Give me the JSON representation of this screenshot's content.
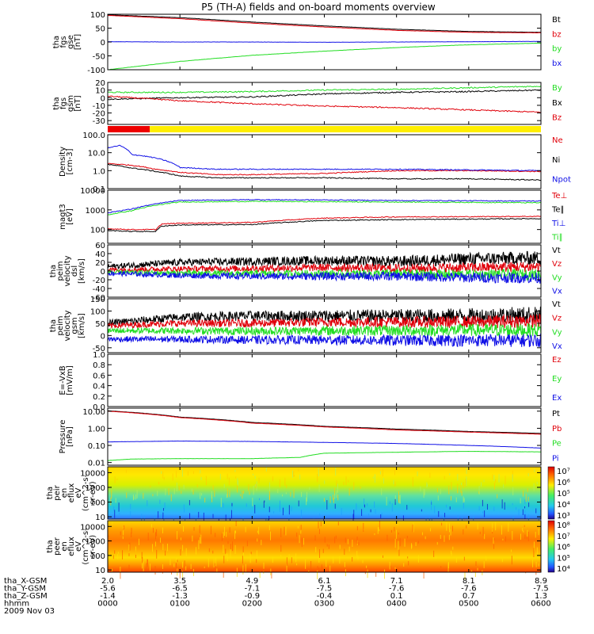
{
  "title": "P5 (TH-A) fields and on-board moments overview",
  "colors": {
    "black": "#000000",
    "red": "#e0000a",
    "green": "#22dd22",
    "blue": "#1010e6",
    "yellow": "#ffee00",
    "bar_red": "#ee0000"
  },
  "chart_data": [
    {
      "type": "line",
      "id": "fgs_gse",
      "ylabel": [
        "tha",
        "fgs",
        "gse",
        "[nT]"
      ],
      "ylim": [
        -100,
        100
      ],
      "yticks": [
        "100",
        "50",
        "0",
        "-50",
        "-100"
      ],
      "ytick_values": [
        100,
        50,
        0,
        -50,
        -100
      ],
      "series": [
        {
          "name": "Bt",
          "color": "#000000",
          "x": [
            0,
            60,
            120,
            180,
            240,
            300,
            360
          ],
          "y": [
            98,
            88,
            72,
            58,
            46,
            38,
            35
          ]
        },
        {
          "name": "bz",
          "color": "#e0000a",
          "x": [
            0,
            60,
            120,
            180,
            240,
            300,
            360
          ],
          "y": [
            96,
            84,
            68,
            54,
            42,
            35,
            33
          ]
        },
        {
          "name": "by",
          "color": "#22dd22",
          "x": [
            0,
            60,
            120,
            180,
            240,
            300,
            360
          ],
          "y": [
            -100,
            -70,
            -48,
            -33,
            -20,
            -10,
            -4
          ]
        },
        {
          "name": "bx",
          "color": "#1010e6",
          "x": [
            0,
            60,
            120,
            180,
            240,
            300,
            360
          ],
          "y": [
            1,
            0,
            0,
            -1,
            0,
            1,
            2
          ]
        }
      ]
    },
    {
      "type": "line",
      "id": "fgs_gsm",
      "ylabel": [
        "tha",
        "fgs",
        "gsm",
        "[nT]"
      ],
      "ylim": [
        -35,
        20
      ],
      "yticks": [
        "20",
        "10",
        "0",
        "-10",
        "-20",
        "-30"
      ],
      "ytick_values": [
        20,
        10,
        0,
        -10,
        -20,
        -30
      ],
      "series": [
        {
          "name": "By",
          "color": "#22dd22",
          "x": [
            0,
            60,
            120,
            180,
            240,
            300,
            360
          ],
          "y": [
            7,
            7,
            8,
            10,
            11,
            13,
            15
          ]
        },
        {
          "name": "Bx",
          "color": "#000000",
          "x": [
            0,
            60,
            120,
            180,
            240,
            300,
            360
          ],
          "y": [
            -2,
            0,
            1,
            5,
            7,
            8,
            10
          ]
        },
        {
          "name": "Bz",
          "color": "#e0000a",
          "x": [
            0,
            60,
            120,
            180,
            240,
            300,
            360
          ],
          "y": [
            2,
            -4,
            -8,
            -11,
            -13,
            -16,
            -19
          ]
        }
      ]
    },
    {
      "type": "bar-strip",
      "id": "mode_bar",
      "segments": [
        {
          "x0": 0,
          "x1": 35,
          "color": "#ee0000"
        },
        {
          "x0": 35,
          "x1": 360,
          "color": "#ffee00"
        }
      ]
    },
    {
      "type": "line",
      "id": "density",
      "scale": "log",
      "ylabel": [
        "Density",
        "[cm-3]"
      ],
      "ylim": [
        0.1,
        100
      ],
      "yticks": [
        "100.0",
        "10.0",
        "1.0",
        "0.1"
      ],
      "ytick_values": [
        100,
        10,
        1,
        0.1
      ],
      "series": [
        {
          "name": "Ne",
          "color": "#e0000a",
          "x": [
            0,
            20,
            40,
            60,
            90,
            120,
            180,
            240,
            300,
            360
          ],
          "y": [
            2.5,
            2.0,
            1.2,
            0.8,
            0.6,
            0.6,
            0.7,
            1.0,
            1.0,
            0.9
          ]
        },
        {
          "name": "Ni",
          "color": "#000000",
          "x": [
            0,
            20,
            40,
            60,
            90,
            120,
            180,
            240,
            300,
            360
          ],
          "y": [
            2.2,
            1.4,
            0.9,
            0.5,
            0.4,
            0.4,
            0.4,
            0.35,
            0.35,
            0.3
          ]
        },
        {
          "name": "Npot",
          "color": "#1010e6",
          "x": [
            0,
            10,
            20,
            40,
            60,
            90,
            120,
            180,
            240,
            300,
            360
          ],
          "y": [
            18,
            25,
            8,
            5,
            1.5,
            1.2,
            1.2,
            1.2,
            1.2,
            1.1,
            1.0
          ]
        }
      ]
    },
    {
      "type": "line",
      "id": "mom_temp",
      "scale": "log",
      "ylabel": [
        "magt3",
        "[eV]"
      ],
      "ylim": [
        20,
        10000
      ],
      "yticks": [
        "10000",
        "1000",
        "100"
      ],
      "ytick_values": [
        10000,
        1000,
        100
      ],
      "series": [
        {
          "name": "Te⊥",
          "color": "#e0000a",
          "x": [
            0,
            20,
            40,
            45,
            60,
            120,
            180,
            240,
            300,
            360
          ],
          "y": [
            110,
            100,
            100,
            190,
            210,
            230,
            380,
            440,
            450,
            470
          ]
        },
        {
          "name": "Te∥",
          "color": "#000000",
          "x": [
            0,
            20,
            40,
            45,
            60,
            120,
            180,
            240,
            300,
            360
          ],
          "y": [
            90,
            80,
            80,
            150,
            170,
            180,
            290,
            320,
            340,
            360
          ]
        },
        {
          "name": "Ti⊥",
          "color": "#1010e6",
          "x": [
            0,
            20,
            40,
            60,
            120,
            180,
            240,
            300,
            360
          ],
          "y": [
            700,
            1100,
            2000,
            3000,
            3300,
            3200,
            3000,
            2900,
            2800
          ]
        },
        {
          "name": "Ti∥",
          "color": "#22dd22",
          "x": [
            0,
            20,
            40,
            60,
            120,
            180,
            240,
            300,
            360
          ],
          "y": [
            550,
            900,
            1700,
            2500,
            2700,
            2600,
            2500,
            2400,
            2300
          ]
        }
      ]
    },
    {
      "type": "line",
      "id": "peim_velocity_dsl",
      "ylabel": [
        "tha",
        "peim",
        "velocity",
        "dsl",
        "[km/s]"
      ],
      "ylim": [
        -60,
        60
      ],
      "yticks": [
        "60",
        "40",
        "20",
        "0",
        "-20",
        "-40",
        "-60"
      ],
      "ytick_values": [
        60,
        40,
        20,
        0,
        -20,
        -40,
        -60
      ],
      "series": [
        {
          "name": "Vt",
          "color": "#000000",
          "x": [
            0,
            60,
            120,
            180,
            240,
            300,
            360
          ],
          "y": [
            10,
            20,
            22,
            24,
            22,
            28,
            30
          ]
        },
        {
          "name": "Vz",
          "color": "#e0000a",
          "x": [
            0,
            60,
            120,
            180,
            240,
            300,
            360
          ],
          "y": [
            3,
            5,
            6,
            8,
            6,
            8,
            10
          ]
        },
        {
          "name": "Vy",
          "color": "#22dd22",
          "x": [
            0,
            60,
            120,
            180,
            240,
            300,
            360
          ],
          "y": [
            -3,
            -5,
            -6,
            -6,
            -6,
            -8,
            -8
          ]
        },
        {
          "name": "Vx",
          "color": "#1010e6",
          "x": [
            0,
            60,
            120,
            180,
            240,
            300,
            360
          ],
          "y": [
            -5,
            -10,
            -12,
            -12,
            -12,
            -15,
            -16
          ]
        }
      ]
    },
    {
      "type": "line",
      "id": "peim_velocity_gsm",
      "ylabel": [
        "tha",
        "peim",
        "velocity",
        "gsm",
        "[km/s]"
      ],
      "ylim": [
        -70,
        150
      ],
      "yticks": [
        "150",
        "100",
        "50",
        "0",
        "-50"
      ],
      "ytick_values": [
        150,
        100,
        50,
        0,
        -50
      ],
      "series": [
        {
          "name": "Vt",
          "color": "#000000",
          "x": [
            0,
            60,
            120,
            180,
            240,
            300,
            360
          ],
          "y": [
            50,
            75,
            80,
            80,
            80,
            80,
            85
          ]
        },
        {
          "name": "Vz",
          "color": "#e0000a",
          "x": [
            0,
            60,
            120,
            180,
            240,
            300,
            360
          ],
          "y": [
            40,
            50,
            50,
            55,
            55,
            55,
            60
          ]
        },
        {
          "name": "Vy",
          "color": "#22dd22",
          "x": [
            0,
            60,
            120,
            180,
            240,
            300,
            360
          ],
          "y": [
            20,
            20,
            18,
            20,
            20,
            22,
            22
          ]
        },
        {
          "name": "Vx",
          "color": "#1010e6",
          "x": [
            0,
            60,
            120,
            180,
            240,
            300,
            360
          ],
          "y": [
            -15,
            -15,
            -18,
            -18,
            -20,
            -20,
            -20
          ]
        }
      ]
    },
    {
      "type": "line",
      "id": "efield",
      "ylabel": [
        "E=-VxB",
        "[mV/m]"
      ],
      "ylim": [
        0,
        1
      ],
      "yticks": [
        "1.0",
        "0.8",
        "0.6",
        "0.4",
        "0.2",
        "0.0"
      ],
      "ytick_values": [
        1,
        0.8,
        0.6,
        0.4,
        0.2,
        0
      ],
      "series": [
        {
          "name": "Ez",
          "color": "#e0000a",
          "x": [],
          "y": []
        },
        {
          "name": "Ey",
          "color": "#22dd22",
          "x": [],
          "y": []
        },
        {
          "name": "Ex",
          "color": "#1010e6",
          "x": [],
          "y": []
        }
      ]
    },
    {
      "type": "line",
      "id": "pressure",
      "scale": "log",
      "ylabel": [
        "Pressure",
        "[nPa]"
      ],
      "ylim": [
        0.007,
        15
      ],
      "yticks": [
        "10.00",
        "1.00",
        "0.10",
        "0.01"
      ],
      "ytick_values": [
        10,
        1,
        0.1,
        0.01
      ],
      "series": [
        {
          "name": "Pt",
          "color": "#000000",
          "x": [
            0,
            60,
            120,
            180,
            240,
            300,
            360
          ],
          "y": [
            10.5,
            4.5,
            2.2,
            1.3,
            0.9,
            0.65,
            0.5
          ]
        },
        {
          "name": "Pb",
          "color": "#e0000a",
          "x": [
            0,
            60,
            120,
            180,
            240,
            300,
            360
          ],
          "y": [
            10,
            4.2,
            2.0,
            1.2,
            0.8,
            0.6,
            0.45
          ]
        },
        {
          "name": "Pe",
          "color": "#22dd22",
          "x": [
            0,
            20,
            60,
            120,
            160,
            180,
            240,
            300,
            360
          ],
          "y": [
            0.013,
            0.016,
            0.017,
            0.017,
            0.02,
            0.035,
            0.04,
            0.045,
            0.042
          ]
        },
        {
          "name": "Pi",
          "color": "#1010e6",
          "x": [
            0,
            60,
            120,
            180,
            240,
            300,
            360
          ],
          "y": [
            0.16,
            0.18,
            0.17,
            0.15,
            0.13,
            0.1,
            0.07
          ]
        }
      ]
    },
    {
      "type": "heatmap",
      "id": "peir_en_eflux",
      "scale": "log",
      "ylabel": [
        "tha",
        "peir",
        "en",
        "eflux",
        "eV",
        "(cm^2-s-",
        "sr-eV)"
      ],
      "ylim": [
        7,
        25000
      ],
      "yticks": [
        "10000",
        "1000",
        "100",
        "10"
      ],
      "ytick_values": [
        10000,
        1000,
        100,
        10
      ],
      "colorbar": {
        "ticks": [
          "10⁷",
          "10⁶",
          "10⁵",
          "10⁴",
          "10³"
        ],
        "range": [
          1000,
          10000000
        ]
      }
    },
    {
      "type": "heatmap",
      "id": "peer_en_eflux",
      "scale": "log",
      "ylabel": [
        "tha",
        "peer",
        "en",
        "eflux",
        "eV",
        "(cm^2-s-",
        "sr-eV)"
      ],
      "ylim": [
        7,
        25000
      ],
      "yticks": [
        "10000",
        "1000",
        "100",
        "10"
      ],
      "ytick_values": [
        10000,
        1000,
        100,
        10
      ],
      "colorbar": {
        "ticks": [
          "10⁸",
          "10⁷",
          "10⁶",
          "10⁵",
          "10⁴"
        ],
        "range": [
          5000,
          100000000
        ]
      }
    }
  ],
  "xaxis": {
    "rows": [
      {
        "label": "tha_X-GSM",
        "values": [
          "2.0",
          "3.5",
          "4.9",
          "6.1",
          "7.1",
          "8.1",
          "8.9"
        ]
      },
      {
        "label": "tha_Y-GSM",
        "values": [
          "-5.6",
          "-6.5",
          "-7.1",
          "-7.5",
          "-7.6",
          "-7.6",
          "-7.5"
        ]
      },
      {
        "label": "tha_Z-GSM",
        "values": [
          "-1.4",
          "-1.3",
          "-0.9",
          "-0.4",
          "0.1",
          "0.7",
          "1.3"
        ]
      },
      {
        "label": "hhmm",
        "values": [
          "0000",
          "0100",
          "0200",
          "0300",
          "0400",
          "0500",
          "0600"
        ]
      }
    ],
    "date": "2009 Nov 03",
    "tick_minutes": [
      0,
      60,
      120,
      180,
      240,
      300,
      360
    ]
  }
}
